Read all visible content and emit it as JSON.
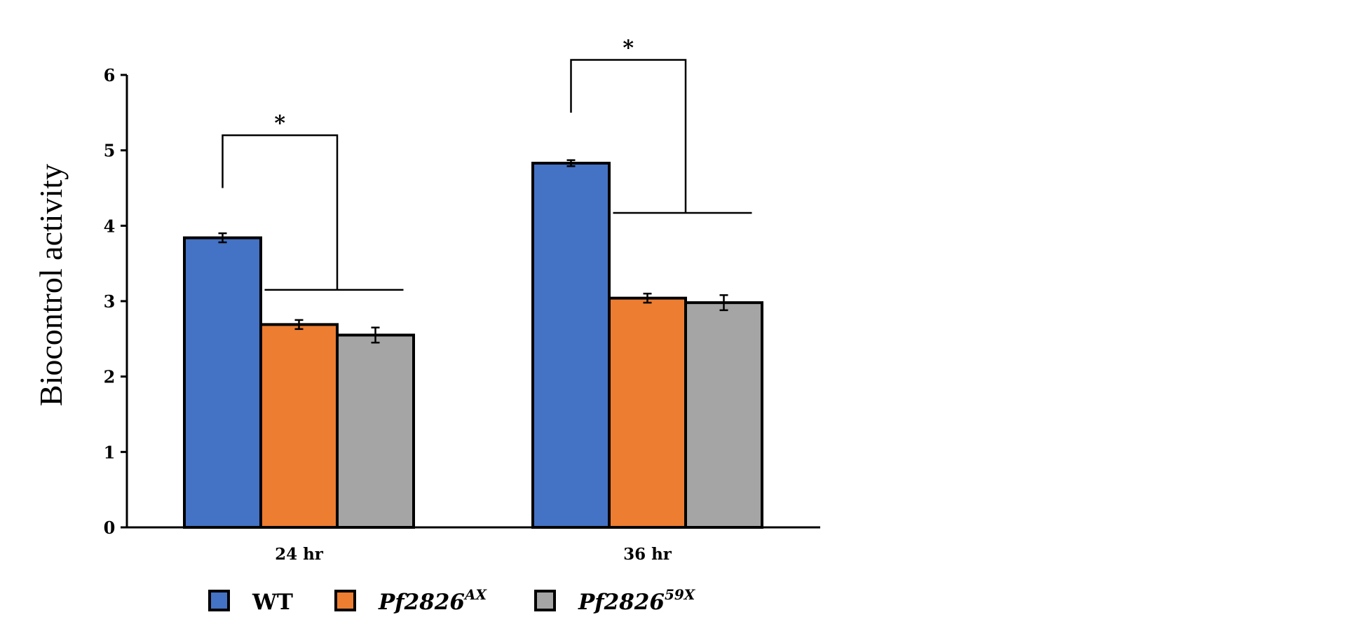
{
  "chart_data": {
    "type": "bar",
    "title": "",
    "xlabel": "",
    "ylabel": "Biocontrol activity",
    "ylim": [
      0,
      6
    ],
    "yticks": [
      "0",
      "1",
      "2",
      "3",
      "4",
      "5",
      "6"
    ],
    "categories": [
      "24 hr",
      "36 hr"
    ],
    "series": [
      {
        "name": "WT",
        "legend_base": "WT",
        "legend_sup": "",
        "italic": false,
        "color": "#4472C4",
        "values": [
          3.84,
          4.83
        ],
        "errors": [
          0.06,
          0.04
        ]
      },
      {
        "name": "Pf2826AX",
        "legend_base": "Pf2826",
        "legend_sup": "AX",
        "italic": true,
        "color": "#ED7D31",
        "values": [
          2.69,
          3.04
        ],
        "errors": [
          0.06,
          0.06
        ]
      },
      {
        "name": "Pf282659X",
        "legend_base": "Pf2826",
        "legend_sup": "59X",
        "italic": true,
        "color": "#A5A5A5",
        "values": [
          2.55,
          2.98
        ],
        "errors": [
          0.1,
          0.1
        ]
      }
    ],
    "significance": [
      {
        "category_index": 0,
        "label": "*",
        "top_value": 5.2,
        "left_start_value": 4.5,
        "right_end_value": 3.15
      },
      {
        "category_index": 1,
        "label": "*",
        "top_value": 6.2,
        "left_start_value": 5.5,
        "right_end_value": 4.17
      }
    ],
    "legend_position": "bottom",
    "grid": false
  }
}
